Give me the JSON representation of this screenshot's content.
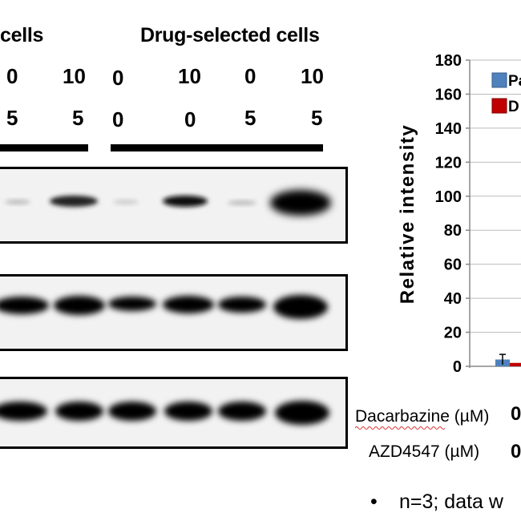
{
  "header": {
    "group_left": "cells",
    "group_right": "Drug-selected cells"
  },
  "lanes": {
    "row1": [
      "0",
      "10",
      "0",
      "10",
      "0",
      "10"
    ],
    "row2": [
      "5",
      "5",
      "0",
      "0",
      "5",
      "5"
    ]
  },
  "chart": {
    "ylabel": "Relative intensity",
    "yticks": [
      "180",
      "160",
      "140",
      "120",
      "100",
      "80",
      "60",
      "40",
      "20",
      "0"
    ],
    "legend": [
      {
        "name": "Pa",
        "color": "#4f81bd"
      },
      {
        "name": "D",
        "color": "#c00000"
      }
    ]
  },
  "treatments": {
    "dacarbazine_label": "Dacarbazine (µM)",
    "dacarbazine_value": "0",
    "azd_label": "AZD4547 (µM)",
    "azd_value": "0"
  },
  "footnote": {
    "bullet": "•",
    "text": "n=3; data w"
  },
  "chart_data": {
    "type": "bar",
    "ylabel": "Relative intensity",
    "ylim": [
      0,
      180
    ],
    "yticks": [
      0,
      20,
      40,
      60,
      80,
      100,
      120,
      140,
      160,
      180
    ],
    "grid": true,
    "legend_position": "top-right",
    "series": [
      {
        "name": "Pa",
        "values": [
          4
        ]
      },
      {
        "name": "D",
        "values": [
          2
        ]
      }
    ]
  }
}
